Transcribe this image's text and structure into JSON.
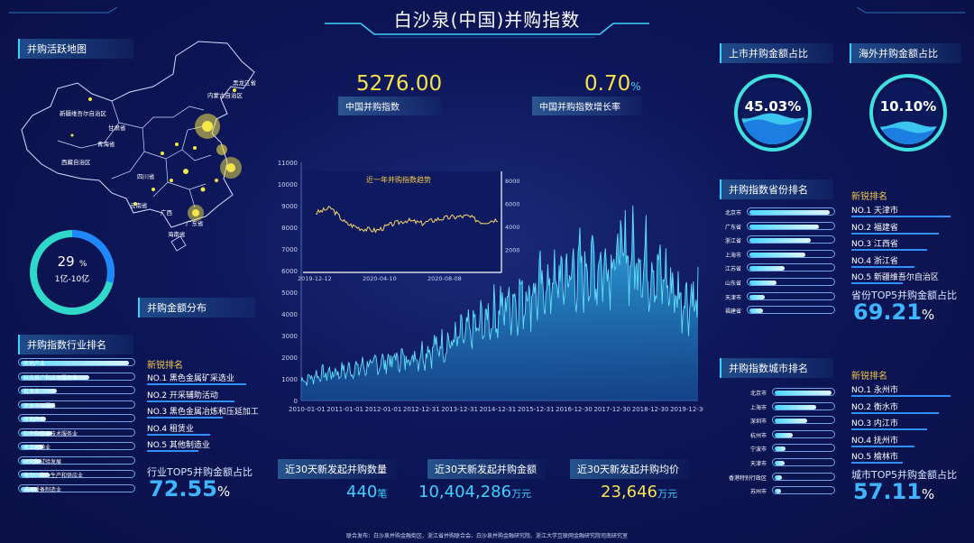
{
  "header": {
    "title": "白沙泉(中国)并购指数"
  },
  "map": {
    "label": "并购活跃地图",
    "regions": [
      "黑龙江省",
      "内蒙古自治区",
      "新疆维吾尔自治区",
      "甘肃省",
      "青海省",
      "西藏自治区",
      "四川省",
      "云南省",
      "广西",
      "广东省",
      "海南省"
    ]
  },
  "ring_left": {
    "value": "29",
    "unit": "%",
    "caption": "1亿-10亿",
    "label": "并购金额分布",
    "fraction": 0.29
  },
  "kpi": {
    "index_value": "5276.00",
    "index_label": "中国并购指数",
    "growth_value": "0.70",
    "growth_unit": "%",
    "growth_label": "中国并购指数增长率"
  },
  "gauges": {
    "listed_label": "上市并购金额占比",
    "listed_value": "45.03%",
    "listed_fraction": 0.4503,
    "overseas_label": "海外并购金额占比",
    "overseas_value": "10.10%",
    "overseas_fraction": 0.101
  },
  "chart_data": [
    {
      "type": "area",
      "title": "",
      "yticks": [
        "0",
        "1000",
        "2000",
        "3000",
        "4000",
        "5000",
        "6000",
        "7000",
        "8000",
        "9000",
        "10000",
        "11000"
      ],
      "ylim": [
        0,
        11000
      ],
      "xticks": [
        "2010-01-01",
        "2011-01-01",
        "2012-01-01",
        "2012-12-31",
        "2013-12-31",
        "2014-12-31",
        "2015-12-31",
        "2016-12-30",
        "2017-12-30",
        "2018-12-30",
        "2019-12-30"
      ],
      "x": [
        "2010-01",
        "2010-07",
        "2011-01",
        "2011-07",
        "2012-01",
        "2012-07",
        "2013-01",
        "2013-07",
        "2014-01",
        "2014-07",
        "2015-01",
        "2015-07",
        "2016-01",
        "2016-07",
        "2017-01",
        "2017-07",
        "2018-01",
        "2018-07",
        "2019-01",
        "2019-07",
        "2020-01",
        "2020-06"
      ],
      "values": [
        900,
        1200,
        1300,
        1500,
        1700,
        1900,
        2000,
        2400,
        2700,
        3200,
        3800,
        4500,
        4900,
        5200,
        5700,
        6000,
        6300,
        6800,
        6500,
        5800,
        4800,
        4600
      ]
    },
    {
      "type": "line",
      "title": "近一年并购指数趋势",
      "yticks": [
        "2000",
        "4000",
        "6000",
        "8000"
      ],
      "ylim": [
        0,
        8800
      ],
      "xticks": [
        "2019-12-12",
        "2020-04-10",
        "2020-08-08"
      ],
      "x": [
        "2019-12",
        "2020-01",
        "2020-02",
        "2020-03",
        "2020-04",
        "2020-05",
        "2020-06",
        "2020-07",
        "2020-08",
        "2020-09",
        "2020-10",
        "2020-11",
        "2020-12"
      ],
      "values": [
        5400,
        5900,
        4400,
        3900,
        3700,
        4300,
        4700,
        4400,
        4800,
        5000,
        5100,
        4500,
        4800
      ]
    }
  ],
  "industry": {
    "label": "并购指数行业排名",
    "items": [
      {
        "name": "房地产业",
        "value": 0.95
      },
      {
        "name": "科技推广和应用服务业",
        "value": 0.6
      },
      {
        "name": "批发业",
        "value": 0.32
      },
      {
        "name": "资本市场服务",
        "value": 0.3
      },
      {
        "name": "房地产业",
        "value": 0.22
      },
      {
        "name": "软件和信息技术服务业",
        "value": 0.28
      },
      {
        "name": "水上运输业",
        "value": 0.2
      },
      {
        "name": "研究和试验发展",
        "value": 0.18
      },
      {
        "name": "电力、热力生产和供应业",
        "value": 0.25
      },
      {
        "name": "通用设备制造业",
        "value": 0.15
      }
    ],
    "new_head": "新锐排名",
    "new": [
      {
        "no": "NO.1",
        "name": "黑色金属矿采选业"
      },
      {
        "no": "NO.2",
        "name": "开采辅助活动"
      },
      {
        "no": "NO.3",
        "name": "黑色金属冶炼和压延加工"
      },
      {
        "no": "NO.4",
        "name": "租赁业"
      },
      {
        "no": "NO.5",
        "name": "其他制造业"
      }
    ],
    "top5_label": "行业TOP5并购金额占比",
    "top5_value": "72.55",
    "pct": "%"
  },
  "province": {
    "label": "并购指数省份排名",
    "items": [
      {
        "name": "北京市",
        "value": 0.95
      },
      {
        "name": "广东省",
        "value": 0.82
      },
      {
        "name": "浙江省",
        "value": 0.72
      },
      {
        "name": "上海市",
        "value": 0.66
      },
      {
        "name": "江苏省",
        "value": 0.42
      },
      {
        "name": "山东省",
        "value": 0.32
      },
      {
        "name": "天津市",
        "value": 0.18
      },
      {
        "name": "福建省",
        "value": 0.16
      }
    ],
    "new_head": "新锐排名",
    "new": [
      {
        "no": "NO.1",
        "name": "天津市"
      },
      {
        "no": "NO.2",
        "name": "福建省"
      },
      {
        "no": "NO.3",
        "name": "江西省"
      },
      {
        "no": "NO.4",
        "name": "浙江省"
      },
      {
        "no": "NO.5",
        "name": "新疆维吾尔自治区"
      }
    ],
    "top5_label": "省份TOP5并购金额占比",
    "top5_value": "69.21",
    "pct": "%"
  },
  "city": {
    "label": "并购指数城市排名",
    "items": [
      {
        "name": "北京市",
        "value": 0.95
      },
      {
        "name": "上海市",
        "value": 0.7
      },
      {
        "name": "深圳市",
        "value": 0.55
      },
      {
        "name": "杭州市",
        "value": 0.3
      },
      {
        "name": "宁波市",
        "value": 0.18
      },
      {
        "name": "天津市",
        "value": 0.16
      },
      {
        "name": "香港特别行政区",
        "value": 0.12
      },
      {
        "name": "苏州市",
        "value": 0.1
      }
    ],
    "new_head": "新锐排名",
    "new": [
      {
        "no": "NO.1",
        "name": "永州市"
      },
      {
        "no": "NO.2",
        "name": "衡水市"
      },
      {
        "no": "NO.3",
        "name": "内江市"
      },
      {
        "no": "NO.4",
        "name": "抚州市"
      },
      {
        "no": "NO.5",
        "name": "榆林市"
      }
    ],
    "top5_label": "城市TOP5并购金额占比",
    "top5_value": "57.11",
    "pct": "%"
  },
  "bottom": {
    "count_label": "近30天新发起并购数量",
    "count_value": "440",
    "count_unit": "笔",
    "amount_label": "近30天新发起并购金额",
    "amount_value": "10,404,286",
    "amount_unit": "万元",
    "avg_label": "近30天新发起并购均价",
    "avg_value": "23,646",
    "avg_unit": "万元"
  },
  "footer": "联合发布：白沙泉并购金融街区、浙江省并购联合会、白沙泉并购金融研究院、浙江大学互联网金融研究院司南研究室",
  "colors": {
    "accent": "#3fd0ff",
    "gold": "#f7e14c",
    "bg": "#0b1350"
  }
}
